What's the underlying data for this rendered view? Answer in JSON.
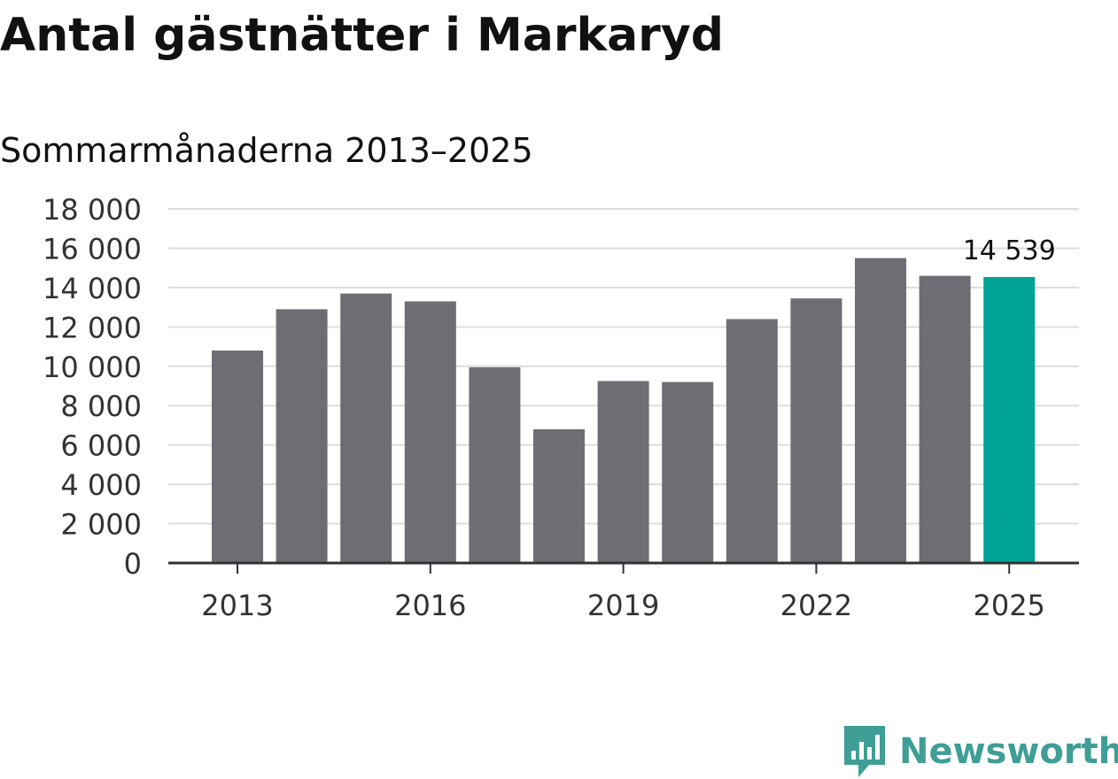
{
  "title": "Antal gästnätter i Markaryd",
  "subtitle": "Sommarmånaderna 2013–2025",
  "brand": {
    "name": "Newsworthy",
    "icon": "newsworthy-logo-icon"
  },
  "colors": {
    "bar": "#6e6d74",
    "highlight": "#00a398",
    "grid": "#dddddd",
    "axis": "#333333",
    "brand": "#3f9e96"
  },
  "chart_data": {
    "type": "bar",
    "title": "Antal gästnätter i Markaryd",
    "subtitle": "Sommarmånaderna 2013–2025",
    "xlabel": "",
    "ylabel": "",
    "categories": [
      "2013",
      "2014",
      "2015",
      "2016",
      "2017",
      "2018",
      "2019",
      "2020",
      "2021",
      "2022",
      "2023",
      "2024",
      "2025"
    ],
    "values": [
      10800,
      12900,
      13700,
      13300,
      9950,
      6800,
      9250,
      9200,
      12400,
      13450,
      15500,
      14600,
      14539
    ],
    "highlight_index": 12,
    "x_tick_labels": [
      "2013",
      "2016",
      "2019",
      "2022",
      "2025"
    ],
    "y_ticks": [
      0,
      2000,
      4000,
      6000,
      8000,
      10000,
      12000,
      14000,
      16000,
      18000
    ],
    "y_tick_labels": [
      "0",
      "2 000",
      "4 000",
      "6 000",
      "8 000",
      "10 000",
      "12 000",
      "14 000",
      "16 000",
      "18 000"
    ],
    "ylim": [
      0,
      18000
    ],
    "grid": true,
    "legend": "none",
    "annotations": [
      {
        "category": "2025",
        "text": "14 539"
      }
    ]
  }
}
